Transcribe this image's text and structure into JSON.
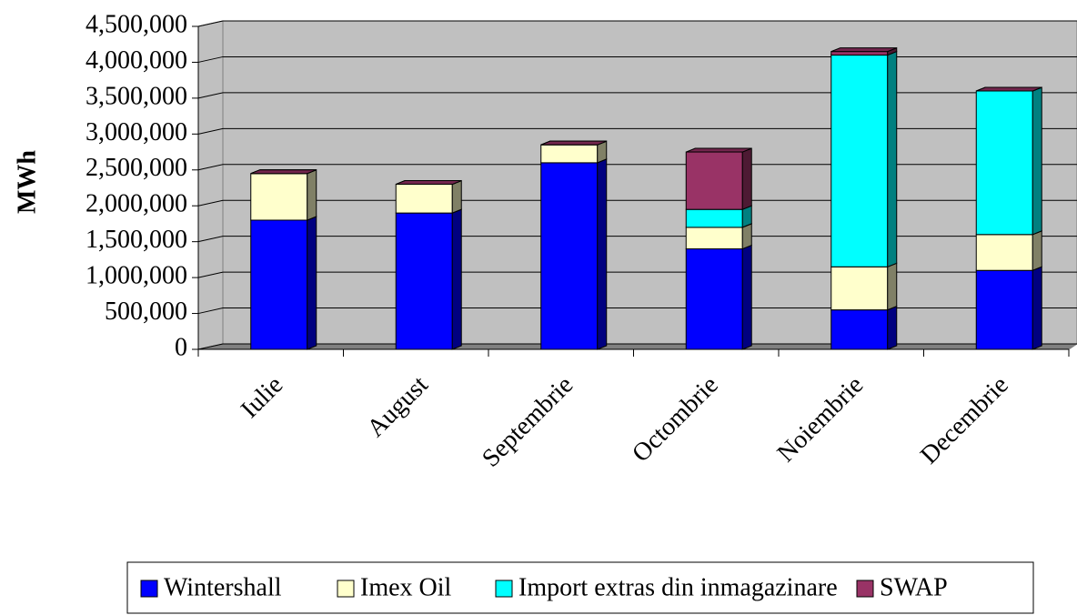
{
  "chart_data": {
    "type": "stacked_bar_3d",
    "y_label": "MWh",
    "categories": [
      "Iulie",
      "August",
      "Septembrie",
      "Octombrie",
      "Noiembrie",
      "Decembrie"
    ],
    "series": [
      {
        "name": "Wintershall",
        "color": "#0000ff",
        "values": [
          1800000,
          1900000,
          2600000,
          1400000,
          550000,
          1100000
        ]
      },
      {
        "name": "Imex Oil",
        "color": "#ffffcc",
        "values": [
          650000,
          400000,
          250000,
          300000,
          600000,
          500000
        ]
      },
      {
        "name": "Import extras din inmagazinare",
        "color": "#00ffff",
        "values": [
          0,
          0,
          0,
          250000,
          2950000,
          2000000
        ]
      },
      {
        "name": "SWAP",
        "color": "#993366",
        "values": [
          0,
          0,
          0,
          800000,
          50000,
          0
        ]
      }
    ],
    "ylim": [
      0,
      4500000
    ],
    "yticks": [
      0,
      {
        "value": 500000,
        "label": "500,000"
      },
      {
        "value": 1000000,
        "label": "1,000,000"
      },
      {
        "value": 1500000,
        "label": "1,500,000"
      },
      {
        "value": 2000000,
        "label": "2,000,000"
      },
      {
        "value": 2500000,
        "label": "2,500,000"
      },
      {
        "value": 3000000,
        "label": "3,000,000"
      },
      {
        "value": 3500000,
        "label": "3,500,000"
      },
      {
        "value": 4000000,
        "label": "4,000,000"
      },
      {
        "value": 4500000,
        "label": "4,500,000"
      }
    ],
    "grid": true,
    "legend": "bottom"
  }
}
